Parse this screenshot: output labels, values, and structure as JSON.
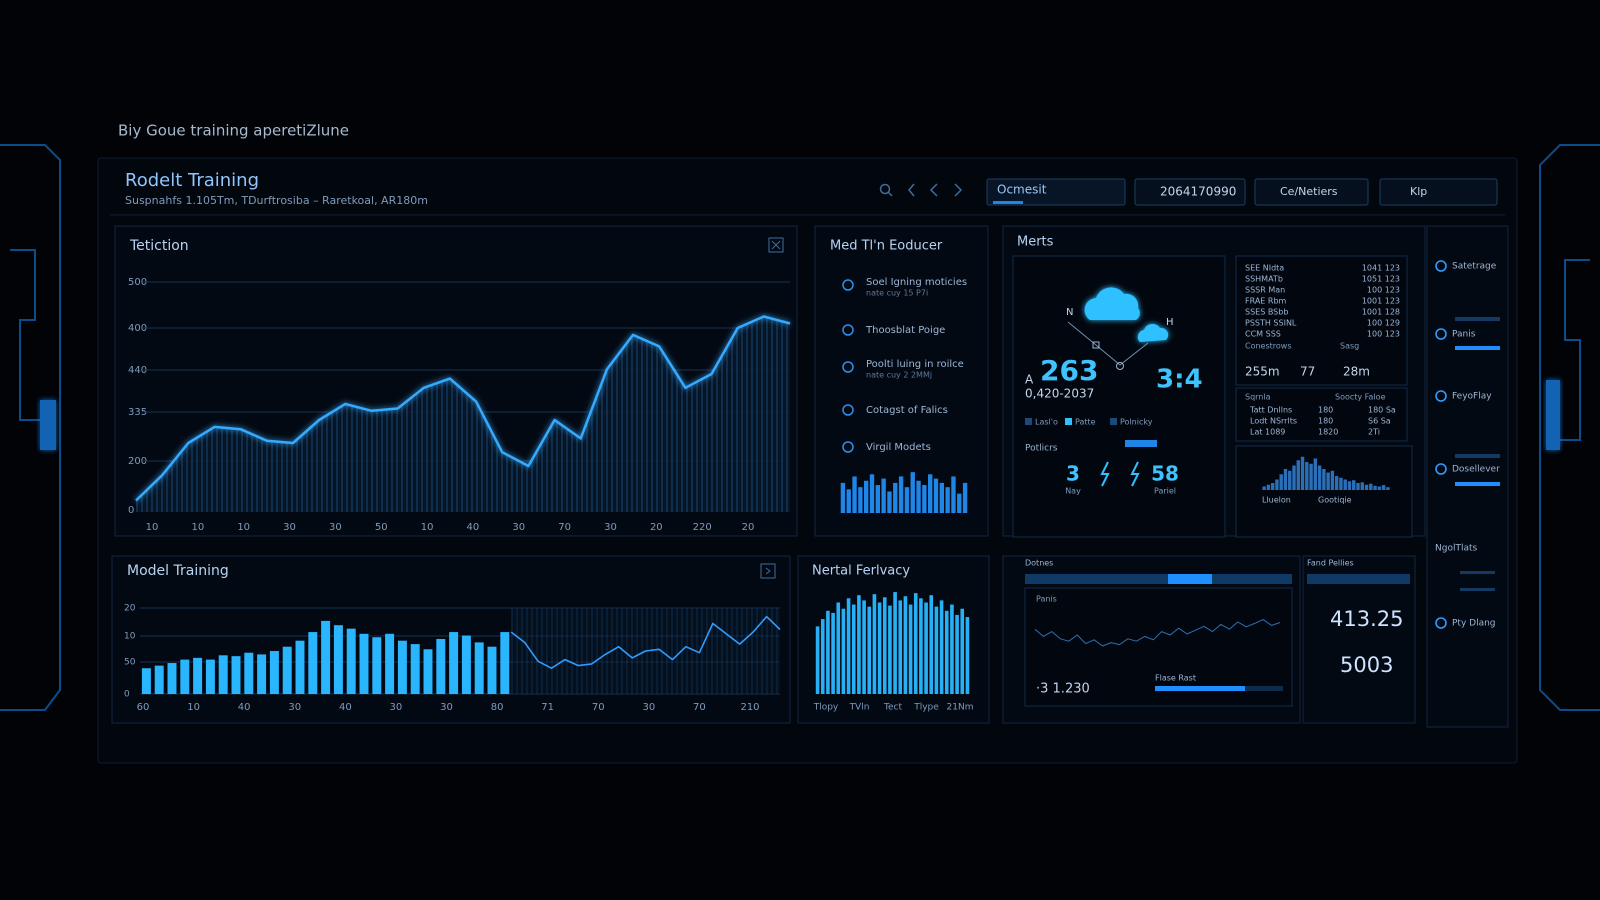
{
  "caption": "Biy Goue training aperetiZlune",
  "header": {
    "title": "Rodelt Training",
    "subtitle": "Suspnahfs 1.105Tm, TDurftrosiba – Raretkoal, AR180m",
    "dropdown": "Ocmesit",
    "field": "2064170990",
    "menu": "Ce/Netiers",
    "button": "Klp"
  },
  "tetiction": {
    "title": "Tetiction",
    "y_labels": [
      "500",
      "400",
      "440",
      "335",
      "200",
      "0"
    ],
    "x_labels": [
      "10",
      "10",
      "10",
      "30",
      "30",
      "50",
      "10",
      "40",
      "30",
      "70",
      "30",
      "20",
      "220",
      "20"
    ],
    "chart": {
      "type": "line",
      "color": "#35aaff",
      "ylim": [
        0,
        100
      ],
      "values": [
        5,
        16,
        30,
        37,
        36,
        31,
        30,
        40,
        47,
        44,
        45,
        54,
        58,
        48,
        26,
        20,
        40,
        32,
        62,
        77,
        72,
        54,
        60,
        80,
        85,
        82
      ]
    }
  },
  "med": {
    "title": "Med Tl'n Eoducer",
    "items": [
      {
        "label": "Soel Igning moticies",
        "sub": "nate cuy 15 P7i"
      },
      {
        "label": "Thoosblat Poige"
      },
      {
        "label": "Poolti luing in roilce",
        "sub": "nate cuy 2 2MMj"
      },
      {
        "label": "Cotagst of Falics"
      },
      {
        "label": "Virgil Modets"
      }
    ],
    "chart": {
      "type": "bar",
      "color": "#1f86e8",
      "ylim": [
        0,
        100
      ],
      "values": [
        70,
        55,
        85,
        60,
        75,
        90,
        65,
        80,
        50,
        70,
        85,
        60,
        95,
        75,
        65,
        90,
        80,
        70,
        60,
        85,
        45,
        70
      ]
    }
  },
  "merts": {
    "title": "Merts",
    "labels": [
      "N",
      "H"
    ],
    "prefix": "A",
    "big": 263,
    "ratio": "3:4",
    "range": "0,420-2037",
    "legend": [
      "Lasl'o",
      "Patte",
      "Polnicky"
    ],
    "potlicrs": "Potlicrs",
    "counts": [
      {
        "value": 3,
        "label": "Nay"
      },
      {
        "value": 58,
        "label": "Pariel"
      }
    ],
    "table": [
      [
        "SEE NIdta",
        "1041 123"
      ],
      [
        "SSHMATb",
        "1051 123"
      ],
      [
        "SSSR Man",
        "100 123"
      ],
      [
        "FRAE Rbm",
        "1001 123"
      ],
      [
        "SSES BSbb",
        "1001 128"
      ],
      [
        "PSSTH SSINL",
        "100 129"
      ],
      [
        "CCM SSS",
        "100 123"
      ]
    ],
    "summary_head": [
      "Conestrows",
      "Sasg"
    ],
    "summary": [
      "255m",
      "77",
      "28m"
    ],
    "table2_head": [
      "Sqrnla",
      "Soocty Faloe"
    ],
    "table2": [
      [
        "Tatt Dnllns",
        "180",
        "180 Sa"
      ],
      [
        "Lodt NSrrlts",
        "180",
        "S6 Sa"
      ],
      [
        "Lat 1089",
        "1820",
        "2Ti"
      ]
    ],
    "hist_labels": [
      "Lluelon",
      "Gootiqie"
    ],
    "hist": {
      "type": "bar",
      "color": "#2a6fb8",
      "ylim": [
        0,
        100
      ],
      "values": [
        10,
        15,
        20,
        30,
        45,
        60,
        55,
        70,
        85,
        95,
        80,
        75,
        90,
        70,
        60,
        50,
        55,
        40,
        35,
        30,
        25,
        28,
        20,
        22,
        15,
        18,
        12,
        10,
        14,
        8
      ]
    }
  },
  "model_training": {
    "title": "Model Training",
    "y_labels": [
      "20",
      "10",
      "50",
      "0"
    ],
    "x_labels": [
      "60",
      "10",
      "40",
      "30",
      "40",
      "30",
      "30",
      "80",
      "71",
      "70",
      "30",
      "70",
      "210"
    ],
    "chart": {
      "type": "bar_line",
      "color": "#29b6ff",
      "ylim": [
        0,
        100
      ],
      "bars": [
        30,
        33,
        36,
        40,
        42,
        40,
        45,
        44,
        48,
        46,
        50,
        55,
        62,
        72,
        85,
        80,
        76,
        70,
        66,
        70,
        62,
        58,
        52,
        64,
        72,
        68,
        60,
        55,
        72
      ],
      "line": [
        72,
        60,
        38,
        30,
        40,
        33,
        35,
        46,
        55,
        42,
        50,
        52,
        40,
        55,
        48,
        82,
        70,
        58,
        72,
        90,
        75
      ]
    }
  },
  "nertal": {
    "title": "Nertal Ferlvacy",
    "x_labels": [
      "Tlopy",
      "TVln",
      "Tect",
      "Tlype",
      "21Nm"
    ],
    "chart": {
      "type": "bar",
      "color": "#27b0f5",
      "ylim": [
        0,
        100
      ],
      "values": [
        65,
        72,
        80,
        78,
        88,
        82,
        92,
        86,
        95,
        90,
        84,
        96,
        88,
        93,
        85,
        98,
        90,
        94,
        86,
        97,
        92,
        88,
        95,
        84,
        90,
        80,
        86,
        76,
        82,
        74
      ]
    }
  },
  "dotnes": {
    "title": "Dotnes",
    "legend": "Panis",
    "value": "·3 1.230",
    "label": "Flase Rast",
    "chart": {
      "type": "line",
      "color": "#2e6fb0",
      "ylim": [
        0,
        100
      ],
      "values": [
        60,
        45,
        55,
        40,
        35,
        48,
        30,
        38,
        25,
        32,
        28,
        40,
        35,
        45,
        38,
        55,
        48,
        62,
        50,
        58,
        66,
        55,
        70,
        60,
        75,
        65,
        72,
        80,
        68,
        74
      ]
    }
  },
  "fand": {
    "title": "Fand Pellies",
    "values": [
      413.25,
      5003
    ]
  },
  "side": [
    "Satetrage",
    "Panis",
    "FeyoFlay",
    "Dosellever",
    "NgolTlats",
    "Pty Dlang"
  ]
}
